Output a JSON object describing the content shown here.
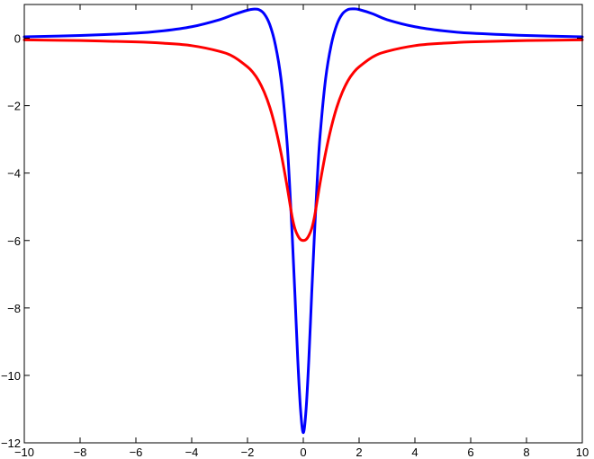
{
  "chart_data": {
    "type": "line",
    "title": "",
    "xlabel": "",
    "ylabel": "",
    "xlim": [
      -10,
      10
    ],
    "ylim": [
      -12,
      1
    ],
    "grid": false,
    "legend": "none",
    "x_ticks": [
      -10,
      -8,
      -6,
      -4,
      -2,
      0,
      2,
      4,
      6,
      8,
      10
    ],
    "x_tick_labels": [
      "−10",
      "−8",
      "−6",
      "−4",
      "−2",
      "0",
      "2",
      "4",
      "6",
      "8",
      "10"
    ],
    "y_ticks": [
      0,
      -2,
      -4,
      -6,
      -8,
      -10,
      -12
    ],
    "y_tick_labels": [
      "0",
      "−2",
      "−4",
      "−6",
      "−8",
      "−10",
      "−12"
    ],
    "series": [
      {
        "color": "#0000ff",
        "x": [
          -10,
          -8,
          -6,
          -5,
          -4,
          -3,
          -2.5,
          -2,
          -1.8,
          -1.6,
          -1.4,
          -1.2,
          -1.0,
          -0.8,
          -0.6,
          -0.5,
          -0.4,
          -0.3,
          -0.2,
          -0.1,
          0,
          0.1,
          0.2,
          0.3,
          0.4,
          0.5,
          0.6,
          0.8,
          1.0,
          1.2,
          1.4,
          1.6,
          1.8,
          2,
          2.5,
          3,
          4,
          5,
          6,
          8,
          10
        ],
        "y": [
          0.04,
          0.08,
          0.15,
          0.22,
          0.34,
          0.55,
          0.7,
          0.83,
          0.86,
          0.85,
          0.72,
          0.4,
          -0.2,
          -1.2,
          -2.9,
          -4.2,
          -5.8,
          -7.6,
          -9.5,
          -11.0,
          -11.7,
          -11.0,
          -9.5,
          -7.6,
          -5.8,
          -4.2,
          -2.9,
          -1.2,
          -0.2,
          0.4,
          0.72,
          0.85,
          0.87,
          0.85,
          0.72,
          0.55,
          0.34,
          0.22,
          0.15,
          0.08,
          0.04
        ]
      },
      {
        "color": "#ff0000",
        "x": [
          -10,
          -8,
          -6,
          -5,
          -4,
          -3,
          -2.5,
          -2,
          -1.8,
          -1.6,
          -1.4,
          -1.2,
          -1.0,
          -0.8,
          -0.6,
          -0.5,
          -0.4,
          -0.3,
          -0.2,
          -0.1,
          0,
          0.1,
          0.2,
          0.3,
          0.4,
          0.5,
          0.6,
          0.8,
          1.0,
          1.2,
          1.4,
          1.6,
          1.8,
          2,
          2.5,
          3,
          4,
          5,
          6,
          8,
          10
        ],
        "y": [
          -0.05,
          -0.07,
          -0.11,
          -0.15,
          -0.22,
          -0.39,
          -0.55,
          -0.85,
          -1.02,
          -1.26,
          -1.6,
          -2.05,
          -2.65,
          -3.4,
          -4.3,
          -4.8,
          -5.3,
          -5.65,
          -5.85,
          -5.97,
          -6.0,
          -5.97,
          -5.85,
          -5.65,
          -5.3,
          -4.8,
          -4.3,
          -3.4,
          -2.65,
          -2.05,
          -1.6,
          -1.26,
          -1.02,
          -0.85,
          -0.55,
          -0.39,
          -0.22,
          -0.15,
          -0.11,
          -0.07,
          -0.05
        ]
      }
    ]
  }
}
